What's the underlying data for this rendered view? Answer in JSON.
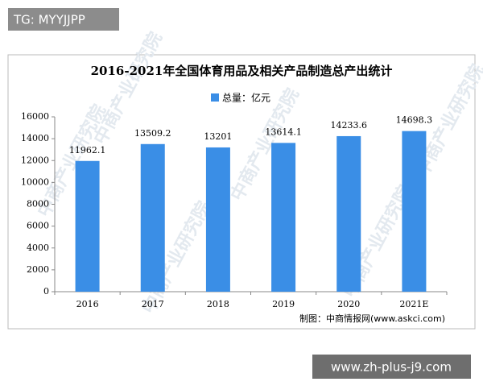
{
  "overlay_tag": "TG: MYYJJPP",
  "footer_link": "www.zh-plus-j9.com",
  "chart_data": {
    "type": "bar",
    "title": "2016-2021年全国体育用品及相关产品制造总产出统计",
    "categories": [
      "2016",
      "2017",
      "2018",
      "2019",
      "2020",
      "2021E"
    ],
    "series": [
      {
        "name": "总量：亿元",
        "color": "#3a8ee6",
        "values": [
          11962.1,
          13509.2,
          13201,
          13614.1,
          14233.6,
          14698.3
        ]
      }
    ],
    "ylim": [
      0,
      16000
    ],
    "yticks": [
      0,
      2000,
      4000,
      6000,
      8000,
      10000,
      12000,
      14000,
      16000
    ],
    "source": "制图：中商情报网(www.askci.com)",
    "watermark": "中商产业研究院"
  }
}
